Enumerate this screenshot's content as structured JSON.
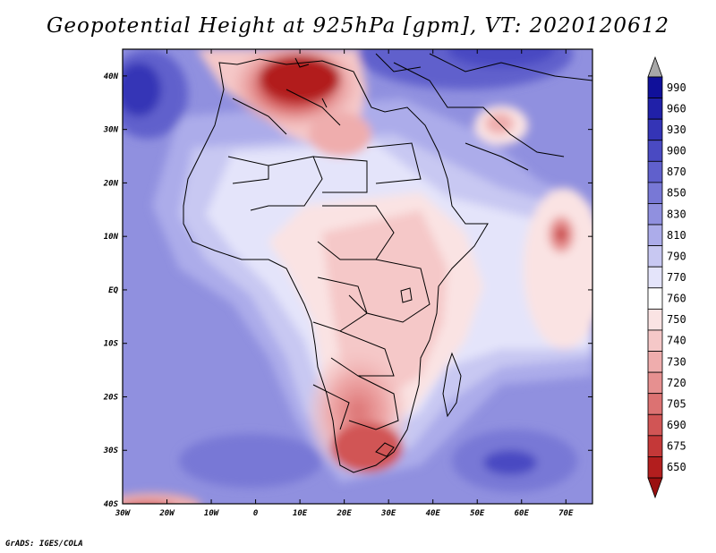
{
  "title": "Geopotential Height at 925hPa [gpm], VT: 2020120612",
  "credit": "GrADS: IGES/COLA",
  "map": {
    "projection": "lat-lon",
    "region": "Africa",
    "lon_range": [
      -30,
      76
    ],
    "lat_range": [
      -40,
      45
    ],
    "lon_ticks": [
      {
        "value": -30,
        "label": "30W"
      },
      {
        "value": -20,
        "label": "20W"
      },
      {
        "value": -10,
        "label": "10W"
      },
      {
        "value": 0,
        "label": "0"
      },
      {
        "value": 10,
        "label": "10E"
      },
      {
        "value": 20,
        "label": "20E"
      },
      {
        "value": 30,
        "label": "30E"
      },
      {
        "value": 40,
        "label": "40E"
      },
      {
        "value": 50,
        "label": "50E"
      },
      {
        "value": 60,
        "label": "60E"
      },
      {
        "value": 70,
        "label": "70E"
      }
    ],
    "lat_ticks": [
      {
        "value": 40,
        "label": "40N"
      },
      {
        "value": 30,
        "label": "30N"
      },
      {
        "value": 20,
        "label": "20N"
      },
      {
        "value": 10,
        "label": "10N"
      },
      {
        "value": 0,
        "label": "EQ"
      },
      {
        "value": -10,
        "label": "10S"
      },
      {
        "value": -20,
        "label": "20S"
      },
      {
        "value": -30,
        "label": "30S"
      },
      {
        "value": -40,
        "label": "40S"
      }
    ]
  },
  "colorbar": {
    "levels": [
      {
        "label": "990",
        "color": "#10109a"
      },
      {
        "label": "960",
        "color": "#2020a8"
      },
      {
        "label": "930",
        "color": "#3434b6"
      },
      {
        "label": "900",
        "color": "#4a4ac2"
      },
      {
        "label": "870",
        "color": "#6060cc"
      },
      {
        "label": "850",
        "color": "#7878d6"
      },
      {
        "label": "830",
        "color": "#9090df"
      },
      {
        "label": "810",
        "color": "#acacea"
      },
      {
        "label": "790",
        "color": "#c8c8f2"
      },
      {
        "label": "770",
        "color": "#e4e4fa"
      },
      {
        "label": "760",
        "color": "#ffffff"
      },
      {
        "label": "750",
        "color": "#fae3e3"
      },
      {
        "label": "740",
        "color": "#f5c8c8"
      },
      {
        "label": "730",
        "color": "#efadad"
      },
      {
        "label": "720",
        "color": "#e69090"
      },
      {
        "label": "705",
        "color": "#dc7272"
      },
      {
        "label": "690",
        "color": "#d15555"
      },
      {
        "label": "675",
        "color": "#c43838"
      },
      {
        "label": "650",
        "color": "#b21e1e"
      }
    ],
    "top_arrow_color": "#a8a8a8",
    "bottom_arrow_color": "#9a1010"
  }
}
